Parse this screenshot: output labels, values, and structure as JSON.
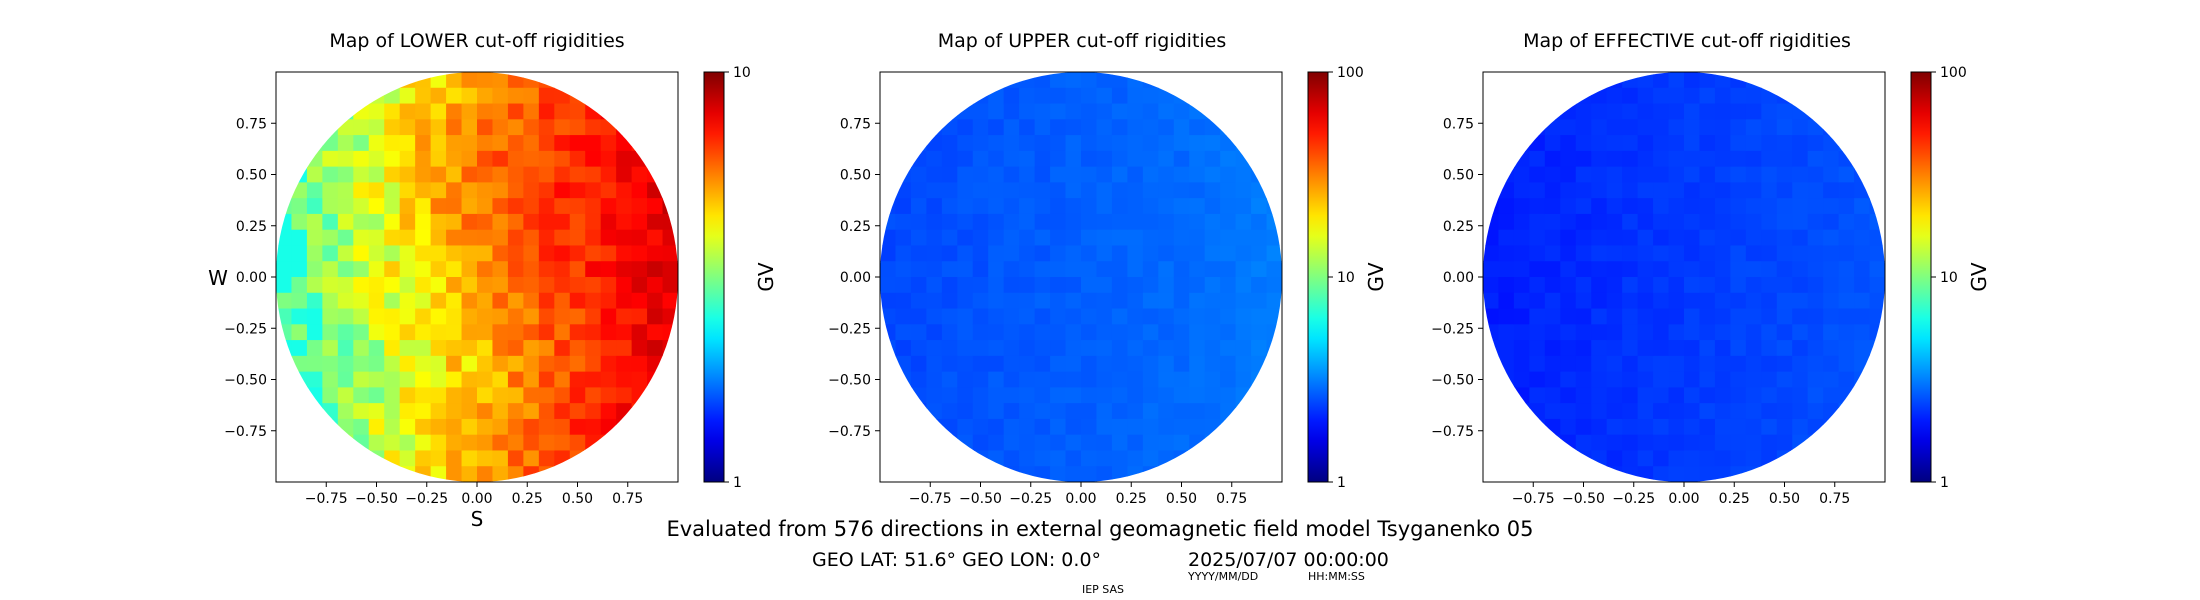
{
  "chart_data": [
    {
      "type": "heatmap",
      "title": "Map of LOWER cut-off rigidities",
      "xlabel": "S",
      "ylabel": "W",
      "xlim": [
        -1,
        1
      ],
      "ylim": [
        -1,
        1
      ],
      "x_ticks": [
        "−0.75",
        "−0.50",
        "−0.25",
        "0.00",
        "0.25",
        "0.50",
        "0.75"
      ],
      "y_ticks": [
        "0.75",
        "0.50",
        "0.25",
        "0.00",
        "−0.25",
        "−0.50",
        "−0.75"
      ],
      "colorbar": {
        "label": "GV",
        "scale": "log",
        "range": [
          1,
          10
        ],
        "ticks": [
          "10",
          "1"
        ]
      },
      "field_description": "Low (~3 GV, blue) at west edge rising to high (~8 GV, red) at east edge",
      "value_range_shown": [
        3,
        8.5
      ]
    },
    {
      "type": "heatmap",
      "title": "Map of UPPER cut-off rigidities",
      "xlabel": "",
      "ylabel": "",
      "xlim": [
        -1,
        1
      ],
      "ylim": [
        -1,
        1
      ],
      "x_ticks": [
        "−0.75",
        "−0.50",
        "−0.25",
        "0.00",
        "0.25",
        "0.50",
        "0.75"
      ],
      "y_ticks": [
        "0.75",
        "0.50",
        "0.25",
        "0.00",
        "−0.25",
        "−0.50",
        "−0.75"
      ],
      "colorbar": {
        "label": "GV",
        "scale": "log",
        "range": [
          1,
          100
        ],
        "ticks": [
          "100",
          "10",
          "1"
        ]
      },
      "value_range_shown": [
        2,
        4
      ]
    },
    {
      "type": "heatmap",
      "title": "Map of EFFECTIVE cut-off rigidities",
      "xlabel": "",
      "ylabel": "",
      "xlim": [
        -1,
        1
      ],
      "ylim": [
        -1,
        1
      ],
      "x_ticks": [
        "−0.75",
        "−0.50",
        "−0.25",
        "0.00",
        "0.25",
        "0.50",
        "0.75"
      ],
      "y_ticks": [
        "0.75",
        "0.50",
        "0.25",
        "0.00",
        "−0.25",
        "−0.50",
        "−0.75"
      ],
      "colorbar": {
        "label": "GV",
        "scale": "log",
        "range": [
          1,
          100
        ],
        "ticks": [
          "100",
          "10",
          "1"
        ]
      },
      "value_range_shown": [
        1.8,
        3.5
      ]
    }
  ],
  "footer": {
    "line1": "Evaluated from 576 directions in external geomagnetic field model Tsyganenko 05",
    "geo": "GEO LAT: 51.6°  GEO LON: 0.0°",
    "datetime": "2025/07/07 00:00:00",
    "date_format": "YYYY/MM/DD",
    "time_format": "HH:MM:SS",
    "credit": "IEP SAS"
  }
}
